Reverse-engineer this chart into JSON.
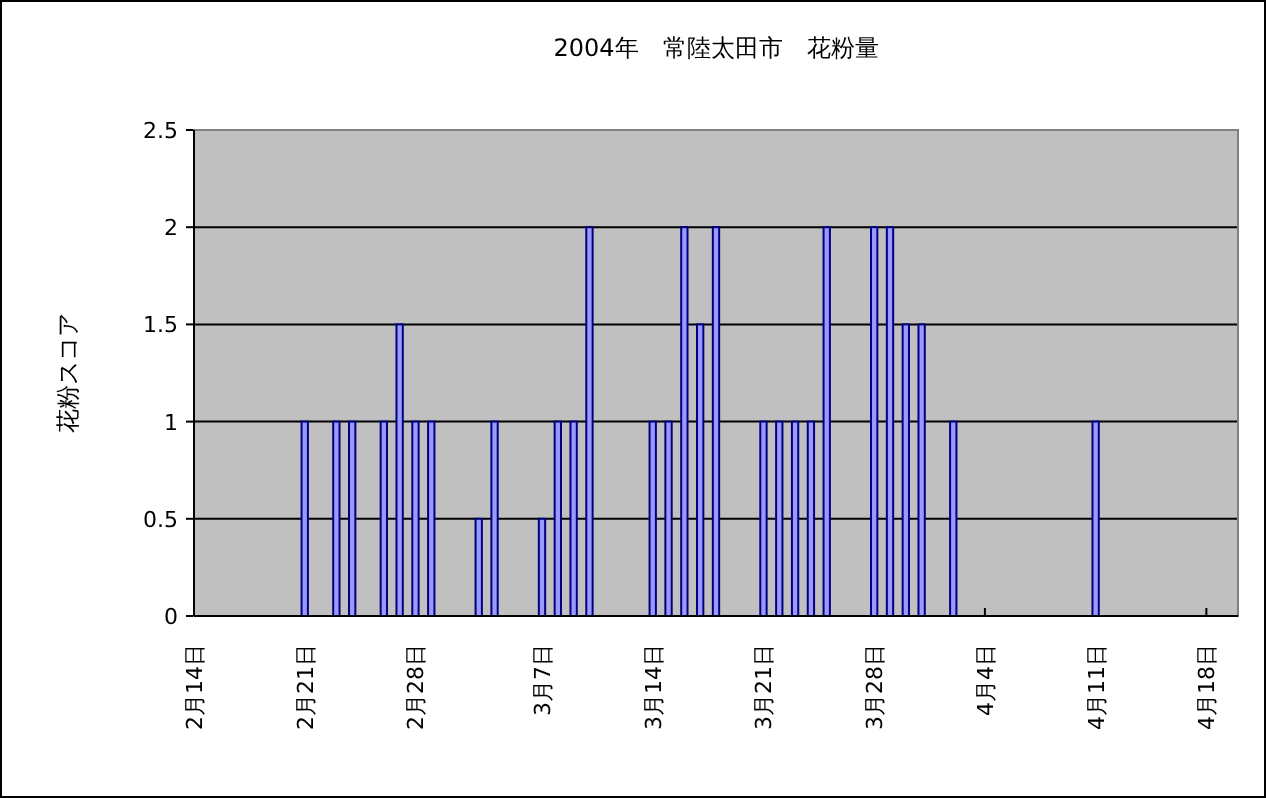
{
  "chart_data": {
    "type": "bar",
    "title": "2004年　常陸太田市　花粉量",
    "ylabel": "花粉スコア",
    "x": [
      "2004-02-21",
      "2004-02-23",
      "2004-02-24",
      "2004-02-26",
      "2004-02-27",
      "2004-02-28",
      "2004-02-29",
      "2004-03-03",
      "2004-03-04",
      "2004-03-07",
      "2004-03-08",
      "2004-03-09",
      "2004-03-10",
      "2004-03-14",
      "2004-03-15",
      "2004-03-16",
      "2004-03-17",
      "2004-03-18",
      "2004-03-21",
      "2004-03-22",
      "2004-03-23",
      "2004-03-24",
      "2004-03-25",
      "2004-03-28",
      "2004-03-29",
      "2004-03-30",
      "2004-03-31",
      "2004-04-02",
      "2004-04-11"
    ],
    "values": [
      1,
      1,
      1,
      1,
      1.5,
      1,
      1,
      0.5,
      1,
      0.5,
      1,
      1,
      2,
      1,
      1,
      2,
      1.5,
      2,
      1,
      1,
      1,
      1,
      2,
      2,
      2,
      1.5,
      1.5,
      1,
      1
    ],
    "color": "#9999ff",
    "xlim": [
      "2004-02-14",
      "2004-04-20"
    ],
    "xticks": [
      {
        "value": "2004-02-14",
        "label": "2月14日"
      },
      {
        "value": "2004-02-21",
        "label": "2月21日"
      },
      {
        "value": "2004-02-28",
        "label": "2月28日"
      },
      {
        "value": "2004-03-07",
        "label": "3月7日"
      },
      {
        "value": "2004-03-14",
        "label": "3月14日"
      },
      {
        "value": "2004-03-21",
        "label": "3月21日"
      },
      {
        "value": "2004-03-28",
        "label": "3月28日"
      },
      {
        "value": "2004-04-04",
        "label": "4月4日"
      },
      {
        "value": "2004-04-11",
        "label": "4月11日"
      },
      {
        "value": "2004-04-18",
        "label": "4月18日"
      }
    ],
    "ylim": [
      0,
      2.5
    ],
    "yticks": [
      0,
      0.5,
      1,
      1.5,
      2,
      2.5
    ],
    "grid": "y"
  }
}
